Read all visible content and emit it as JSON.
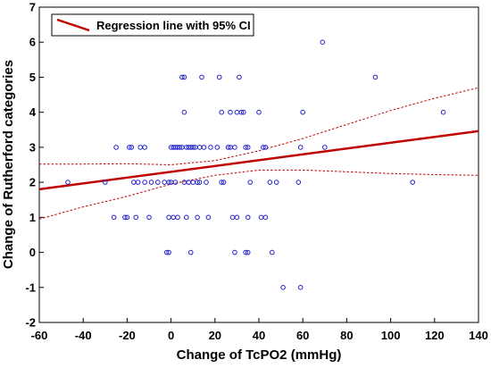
{
  "chart_data": {
    "type": "scatter",
    "title": "",
    "xlabel": "Change of TcPO2 (mmHg)",
    "ylabel": "Change of Rutherford categories",
    "xlim": [
      -60,
      140
    ],
    "ylim": [
      -2,
      7
    ],
    "x_ticks": [
      "-60",
      "-40",
      "-20",
      "0",
      "20",
      "40",
      "60",
      "80",
      "100",
      "120",
      "140"
    ],
    "y_ticks": [
      "-2",
      "-1",
      "0",
      "1",
      "2",
      "3",
      "4",
      "5",
      "6",
      "7"
    ],
    "grid": false,
    "legend": {
      "label": "Regression line with 95% CI",
      "position": "top-left"
    },
    "colors": {
      "points": "#2222cc",
      "regression": "#c00000",
      "ci": "#c00000"
    },
    "points": [
      [
        -47,
        2
      ],
      [
        -30,
        2
      ],
      [
        -26,
        1
      ],
      [
        -25,
        3
      ],
      [
        -21,
        1
      ],
      [
        -20,
        1
      ],
      [
        -19,
        3
      ],
      [
        -18,
        3
      ],
      [
        -17,
        2
      ],
      [
        -16,
        1
      ],
      [
        -15,
        2
      ],
      [
        -14,
        3
      ],
      [
        -12,
        2
      ],
      [
        -12,
        3
      ],
      [
        -10,
        1
      ],
      [
        -9,
        2
      ],
      [
        -6,
        2
      ],
      [
        -3,
        2
      ],
      [
        -2,
        0
      ],
      [
        -1,
        2
      ],
      [
        -1,
        0
      ],
      [
        -1,
        1
      ],
      [
        0,
        3
      ],
      [
        0,
        2
      ],
      [
        1,
        3
      ],
      [
        1,
        1
      ],
      [
        2,
        2
      ],
      [
        2,
        3
      ],
      [
        3,
        1
      ],
      [
        3,
        3
      ],
      [
        4,
        3
      ],
      [
        5,
        3
      ],
      [
        5,
        5
      ],
      [
        6,
        5
      ],
      [
        6,
        4
      ],
      [
        6,
        2
      ],
      [
        7,
        3
      ],
      [
        7,
        1
      ],
      [
        8,
        3
      ],
      [
        8,
        2
      ],
      [
        9,
        3
      ],
      [
        9,
        0
      ],
      [
        10,
        2
      ],
      [
        10,
        3
      ],
      [
        11,
        3
      ],
      [
        12,
        2
      ],
      [
        12,
        1
      ],
      [
        13,
        3
      ],
      [
        13,
        2
      ],
      [
        14,
        5
      ],
      [
        15,
        3
      ],
      [
        16,
        2
      ],
      [
        17,
        1
      ],
      [
        18,
        3
      ],
      [
        21,
        3
      ],
      [
        22,
        5
      ],
      [
        23,
        2
      ],
      [
        23,
        4
      ],
      [
        24,
        2
      ],
      [
        26,
        3
      ],
      [
        27,
        4
      ],
      [
        27,
        3
      ],
      [
        28,
        1
      ],
      [
        29,
        3
      ],
      [
        29,
        0
      ],
      [
        30,
        1
      ],
      [
        30,
        4
      ],
      [
        31,
        5
      ],
      [
        32,
        4
      ],
      [
        33,
        4
      ],
      [
        34,
        3
      ],
      [
        34,
        0
      ],
      [
        35,
        3
      ],
      [
        35,
        0
      ],
      [
        35,
        1
      ],
      [
        36,
        2
      ],
      [
        40,
        4
      ],
      [
        41,
        1
      ],
      [
        42,
        3
      ],
      [
        43,
        3
      ],
      [
        43,
        1
      ],
      [
        45,
        2
      ],
      [
        46,
        0
      ],
      [
        48,
        2
      ],
      [
        51,
        -1
      ],
      [
        58,
        2
      ],
      [
        59,
        -1
      ],
      [
        59,
        3
      ],
      [
        60,
        4
      ],
      [
        69,
        6
      ],
      [
        70,
        3
      ],
      [
        93,
        5
      ],
      [
        110,
        2
      ],
      [
        124,
        4
      ]
    ],
    "regression": {
      "intercept": 2.3,
      "slope": 0.0083
    },
    "ci_upper": [
      [
        -60,
        2.52
      ],
      [
        -40,
        2.52
      ],
      [
        -20,
        2.53
      ],
      [
        0,
        2.5
      ],
      [
        20,
        2.62
      ],
      [
        40,
        2.9
      ],
      [
        60,
        3.25
      ],
      [
        80,
        3.65
      ],
      [
        100,
        4.05
      ],
      [
        120,
        4.4
      ],
      [
        140,
        4.7
      ]
    ],
    "ci_lower": [
      [
        -60,
        0.95
      ],
      [
        -40,
        1.3
      ],
      [
        -20,
        1.6
      ],
      [
        0,
        1.95
      ],
      [
        20,
        2.2
      ],
      [
        40,
        2.35
      ],
      [
        60,
        2.35
      ],
      [
        80,
        2.3
      ],
      [
        100,
        2.25
      ],
      [
        120,
        2.22
      ],
      [
        140,
        2.2
      ]
    ]
  }
}
